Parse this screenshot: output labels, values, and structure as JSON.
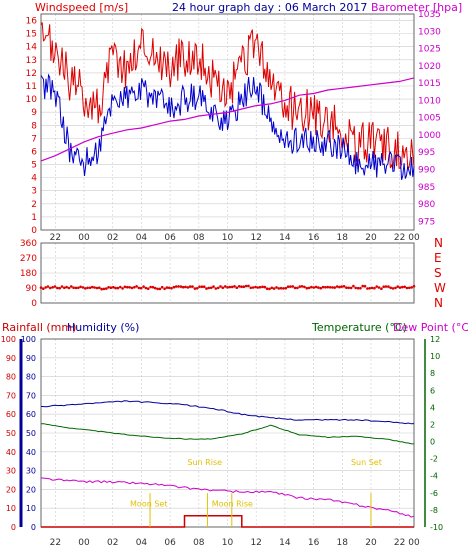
{
  "title": "24 hour graph day : 06 March 2017",
  "x_ticks": [
    "22",
    "00",
    "02",
    "04",
    "06",
    "08",
    "10",
    "12",
    "14",
    "16",
    "18",
    "20",
    "22",
    "00"
  ],
  "colors": {
    "wind_avg": "#0000cc",
    "wind_gust": "#dd0000",
    "barometer": "#cc00cc",
    "direction": "#dd0000",
    "rainfall": "#cc0000",
    "humidity": "#000099",
    "temperature": "#006600",
    "dewpoint": "#cc00cc",
    "astro": "#e0c000",
    "grid": "#cccccc",
    "frame": "#666666"
  },
  "chart_data": [
    {
      "type": "line",
      "title": "Windspeed / Barometer",
      "ylabel": "Windspeed [m/s]",
      "y2label": "Barometer [hpa]",
      "ylim": [
        0,
        16.5
      ],
      "y2lim": [
        972.5,
        1035
      ],
      "y_ticks": [
        "0",
        "1",
        "2",
        "3",
        "4",
        "5",
        "6",
        "7",
        "8",
        "9",
        "10",
        "11",
        "12",
        "13",
        "14",
        "15",
        "16"
      ],
      "y2_ticks": [
        "975",
        "980",
        "985",
        "990",
        "995",
        "1000",
        "1005",
        "1010",
        "1015",
        "1020",
        "1025",
        "1030",
        "1035"
      ],
      "x_hours": [
        0,
        1,
        2,
        3,
        4,
        5,
        6,
        7,
        8,
        9,
        10,
        11,
        12,
        13,
        14,
        15,
        16,
        17,
        18,
        19,
        20,
        21,
        22,
        23,
        24,
        25,
        26
      ],
      "series": [
        {
          "name": "Windspeed gust",
          "values": [
            14,
            13.5,
            11,
            10,
            9,
            13,
            12,
            14,
            13,
            12,
            13,
            13,
            11,
            10,
            12,
            14,
            11,
            9,
            9,
            8.5,
            8,
            7,
            6,
            6.5,
            6,
            5.5,
            6
          ]
        },
        {
          "name": "Windspeed avg",
          "values": [
            11,
            10.5,
            6,
            5,
            6,
            10,
            10,
            10.5,
            10,
            9,
            10,
            10,
            9,
            8,
            10,
            11,
            8,
            6.5,
            7,
            6.5,
            6.5,
            6,
            5,
            5,
            5,
            4.5,
            4.5
          ]
        },
        {
          "name": "Barometer",
          "values": [
            992.5,
            994,
            996,
            998,
            999.5,
            1000.5,
            1001.5,
            1002,
            1003,
            1004,
            1004.5,
            1005.5,
            1006,
            1006.5,
            1007.5,
            1008.5,
            1009,
            1010,
            1011.5,
            1012,
            1013,
            1013.5,
            1014,
            1014.5,
            1015,
            1015.5,
            1016.5
          ]
        }
      ]
    },
    {
      "type": "scatter",
      "title": "Wind direction",
      "ylim": [
        0,
        360
      ],
      "y_ticks": [
        "0",
        "90",
        "180",
        "270",
        "360"
      ],
      "compass_labels": [
        "N",
        "W",
        "S",
        "E",
        "N"
      ],
      "x_hours": [
        0,
        2,
        4,
        6,
        8,
        10,
        12,
        14,
        16,
        18,
        20,
        22,
        24,
        26
      ],
      "series": [
        {
          "name": "Direction",
          "values": [
            92,
            95,
            88,
            96,
            90,
            94,
            92,
            98,
            91,
            96,
            93,
            95,
            92,
            94
          ]
        }
      ]
    },
    {
      "type": "line",
      "title": "Rainfall / Humidity / Temperature / Dew Point",
      "ylabel": "Rainfall (mm)",
      "ylabel2": "Humidity (%)",
      "y2label": "Temperature (°C)",
      "y3label": "Dew Point (°C)",
      "ylim": [
        0,
        100
      ],
      "y2lim": [
        -10,
        12
      ],
      "y_ticks": [
        "0",
        "10",
        "20",
        "30",
        "40",
        "50",
        "60",
        "70",
        "80",
        "90",
        "100"
      ],
      "y2_ticks": [
        "-10",
        "-8",
        "-6",
        "-4",
        "-2",
        "0",
        "2",
        "4",
        "6",
        "8",
        "10",
        "12"
      ],
      "x_hours": [
        0,
        2,
        4,
        6,
        8,
        10,
        12,
        14,
        16,
        18,
        20,
        22,
        24,
        26
      ],
      "series": [
        {
          "name": "Humidity",
          "values": [
            64,
            65,
            66,
            67,
            66,
            65,
            63,
            60,
            58,
            57,
            57,
            57,
            56,
            55
          ]
        },
        {
          "name": "Temperature",
          "values": [
            2.1,
            1.6,
            1.2,
            0.8,
            0.5,
            0.3,
            0.3,
            0.9,
            1.9,
            0.8,
            0.5,
            0.6,
            0.3,
            -0.3
          ]
        },
        {
          "name": "Dew Point",
          "values": [
            -4.3,
            -4.6,
            -4.7,
            -4.8,
            -5.0,
            -5.4,
            -5.7,
            -5.9,
            -5.9,
            -6.6,
            -6.8,
            -7.4,
            -8.0,
            -8.8
          ]
        },
        {
          "name": "Rainfall",
          "values": [
            0,
            0,
            0,
            0,
            0,
            0.6,
            0.6,
            0,
            0,
            0,
            0,
            0,
            0,
            0
          ]
        }
      ],
      "annotations": [
        {
          "label": "Moon Set",
          "hour": 7.6
        },
        {
          "label": "Sun Rise",
          "hour": 11.6
        },
        {
          "label": "Moon Rise",
          "hour": 13.3
        },
        {
          "label": "Sun Set",
          "hour": 23.0
        }
      ]
    }
  ]
}
